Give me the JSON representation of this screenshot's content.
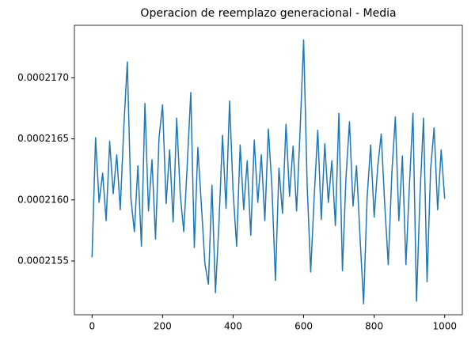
{
  "chart_data": {
    "type": "line",
    "title": "Operacion de reemplazo generacional - Media",
    "x": [
      0,
      10,
      20,
      30,
      40,
      50,
      60,
      70,
      80,
      90,
      100,
      110,
      120,
      130,
      140,
      150,
      160,
      170,
      180,
      190,
      200,
      210,
      220,
      230,
      240,
      250,
      260,
      270,
      280,
      290,
      300,
      310,
      320,
      330,
      340,
      350,
      360,
      370,
      380,
      390,
      400,
      410,
      420,
      430,
      440,
      450,
      460,
      470,
      480,
      490,
      500,
      510,
      520,
      530,
      540,
      550,
      560,
      570,
      580,
      590,
      600,
      610,
      620,
      630,
      640,
      650,
      660,
      670,
      680,
      690,
      700,
      710,
      720,
      730,
      740,
      750,
      760,
      770,
      780,
      790,
      800,
      810,
      820,
      830,
      840,
      850,
      860,
      870,
      880,
      890,
      900,
      910,
      920,
      930,
      940,
      950,
      960,
      970,
      980,
      990,
      1000
    ],
    "series": [
      {
        "name": "Media",
        "color": "#1f77b4",
        "values": [
          0.00021553,
          0.00021651,
          0.00021598,
          0.00021622,
          0.00021583,
          0.00021648,
          0.00021605,
          0.00021637,
          0.00021592,
          0.00021659,
          0.00021713,
          0.00021602,
          0.00021574,
          0.00021628,
          0.00021562,
          0.00021679,
          0.00021591,
          0.00021633,
          0.00021568,
          0.00021651,
          0.00021678,
          0.00021597,
          0.00021641,
          0.00021582,
          0.00021667,
          0.00021605,
          0.00021574,
          0.00021629,
          0.00021688,
          0.00021561,
          0.00021643,
          0.00021596,
          0.00021548,
          0.00021531,
          0.00021612,
          0.00021524,
          0.00021582,
          0.00021653,
          0.00021593,
          0.00021681,
          0.00021607,
          0.00021562,
          0.00021645,
          0.00021592,
          0.00021632,
          0.00021571,
          0.00021649,
          0.00021598,
          0.00021637,
          0.00021583,
          0.00021658,
          0.00021611,
          0.00021534,
          0.00021626,
          0.00021589,
          0.00021662,
          0.00021603,
          0.00021644,
          0.00021591,
          0.00021657,
          0.00021731,
          0.00021612,
          0.00021541,
          0.00021603,
          0.00021657,
          0.00021584,
          0.00021646,
          0.00021598,
          0.00021632,
          0.00021579,
          0.00021671,
          0.00021542,
          0.00021618,
          0.00021664,
          0.00021595,
          0.00021628,
          0.00021569,
          0.00021515,
          0.00021602,
          0.00021645,
          0.00021586,
          0.00021627,
          0.00021654,
          0.00021596,
          0.00021547,
          0.00021621,
          0.00021668,
          0.00021583,
          0.00021636,
          0.00021547,
          0.00021612,
          0.00021671,
          0.00021517,
          0.00021604,
          0.00021667,
          0.00021533,
          0.00021625,
          0.00021659,
          0.00021592,
          0.00021641,
          0.00021601
        ]
      }
    ],
    "xlim": [
      -50,
      1050
    ],
    "xticks": [
      0,
      200,
      400,
      600,
      800,
      1000
    ],
    "ylim": [
      0.00021506,
      0.00021743
    ],
    "yticks": [
      0.0002155,
      {
        "value": 0.000216,
        "label": "0.0002160"
      },
      0.0002165,
      {
        "value": 0.000217,
        "label": "0.0002170"
      }
    ],
    "grid": false
  }
}
